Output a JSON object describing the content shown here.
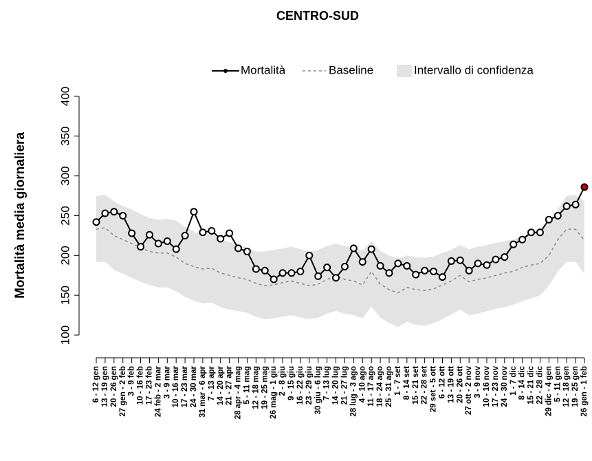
{
  "chart_data": {
    "type": "line",
    "title": "CENTRO-SUD",
    "y_label": "Mortalità media giornaliera",
    "categories": [
      "6 - 12 gen",
      "13 - 19 gen",
      "20 - 26 gen",
      "27 gen - 2 feb",
      "3 - 9 feb",
      "10 - 16 feb",
      "17 - 23 feb",
      "24 feb - 2 mar",
      "3 - 9 mar",
      "10 - 16 mar",
      "17 - 23 mar",
      "24 - 30 mar",
      "31 mar - 6 apr",
      "7 - 13 apr",
      "14 - 20 apr",
      "21 - 27 apr",
      "28 apr - 4 mag",
      "5 - 11 mag",
      "12 - 18 mag",
      "19 - 25 mag",
      "26 mag - 1 giu",
      "2 - 8 giu",
      "9 - 15 giu",
      "16 - 22 giu",
      "23 - 29 giu",
      "30 giu - 6 lug",
      "7 - 13 lug",
      "14 - 20 lug",
      "21 - 27 lug",
      "28 lug - 3 ago",
      "4 - 10 ago",
      "11 - 17 ago",
      "18 - 24 ago",
      "25 - 31 ago",
      "1 - 7 set",
      "8 - 14 set",
      "15 - 21 set",
      "22 - 28 set",
      "29 set - 5 ott",
      "6 - 12 ott",
      "13 - 19 ott",
      "20 - 26 ott",
      "27 ott - 2 nov",
      "3 - 9 nov",
      "10 - 16 nov",
      "17 - 23 nov",
      "24 - 30 nov",
      "1 - 7 dic",
      "8 - 14 dic",
      "15 - 21 dic",
      "22 - 28 dic",
      "29 dic - 4 gen",
      "5 - 11 gen",
      "12 - 18 gen",
      "19 - 25 gen",
      "26 gen - 1 feb"
    ],
    "series": [
      {
        "name": "Mortalità",
        "color": "#000000",
        "point_fill": "#ffffff",
        "last_point_fill": "#cc0000",
        "values": [
          242,
          253,
          255,
          250,
          228,
          211,
          226,
          215,
          218,
          208,
          225,
          255,
          229,
          231,
          221,
          228,
          209,
          205,
          183,
          181,
          170,
          178,
          178,
          180,
          200,
          174,
          185,
          172,
          186,
          209,
          192,
          208,
          187,
          178,
          190,
          187,
          176,
          181,
          180,
          173,
          193,
          194,
          181,
          190,
          188,
          195,
          198,
          214,
          220,
          229,
          229,
          245,
          250,
          262,
          264,
          286
        ]
      },
      {
        "name": "Baseline",
        "color": "#888888",
        "dashed": true,
        "values": [
          233,
          235,
          225,
          220,
          215,
          210,
          205,
          203,
          203,
          198,
          190,
          186,
          183,
          184,
          178,
          175,
          172,
          170,
          165,
          162,
          163,
          166,
          168,
          165,
          162,
          164,
          170,
          174,
          170,
          168,
          163,
          180,
          164,
          157,
          153,
          160,
          157,
          156,
          158,
          163,
          168,
          175,
          167,
          170,
          172,
          175,
          178,
          180,
          185,
          188,
          190,
          200,
          220,
          233,
          233,
          219
        ]
      }
    ],
    "confidence": {
      "name": "Intervallo di confidenza",
      "color": "#e3e3e3",
      "upper": [
        275,
        276,
        268,
        262,
        258,
        252,
        247,
        245,
        246,
        244,
        236,
        230,
        226,
        227,
        220,
        217,
        213,
        210,
        205,
        205,
        207,
        209,
        211,
        208,
        205,
        207,
        212,
        215,
        212,
        210,
        206,
        218,
        206,
        200,
        196,
        200,
        198,
        197,
        199,
        203,
        207,
        213,
        208,
        211,
        213,
        216,
        218,
        220,
        225,
        228,
        232,
        240,
        258,
        275,
        276,
        268
      ],
      "lower": [
        192,
        192,
        182,
        177,
        172,
        167,
        163,
        160,
        160,
        155,
        148,
        143,
        140,
        141,
        135,
        132,
        130,
        128,
        123,
        120,
        121,
        123,
        125,
        122,
        120,
        122,
        127,
        130,
        127,
        125,
        121,
        136,
        122,
        115,
        110,
        117,
        113,
        112,
        115,
        120,
        126,
        132,
        125,
        127,
        130,
        133,
        135,
        138,
        143,
        146,
        150,
        162,
        180,
        192,
        192,
        177
      ]
    },
    "ylim": [
      100,
      400
    ],
    "yticks": [
      100,
      150,
      200,
      250,
      300,
      350,
      400
    ]
  }
}
